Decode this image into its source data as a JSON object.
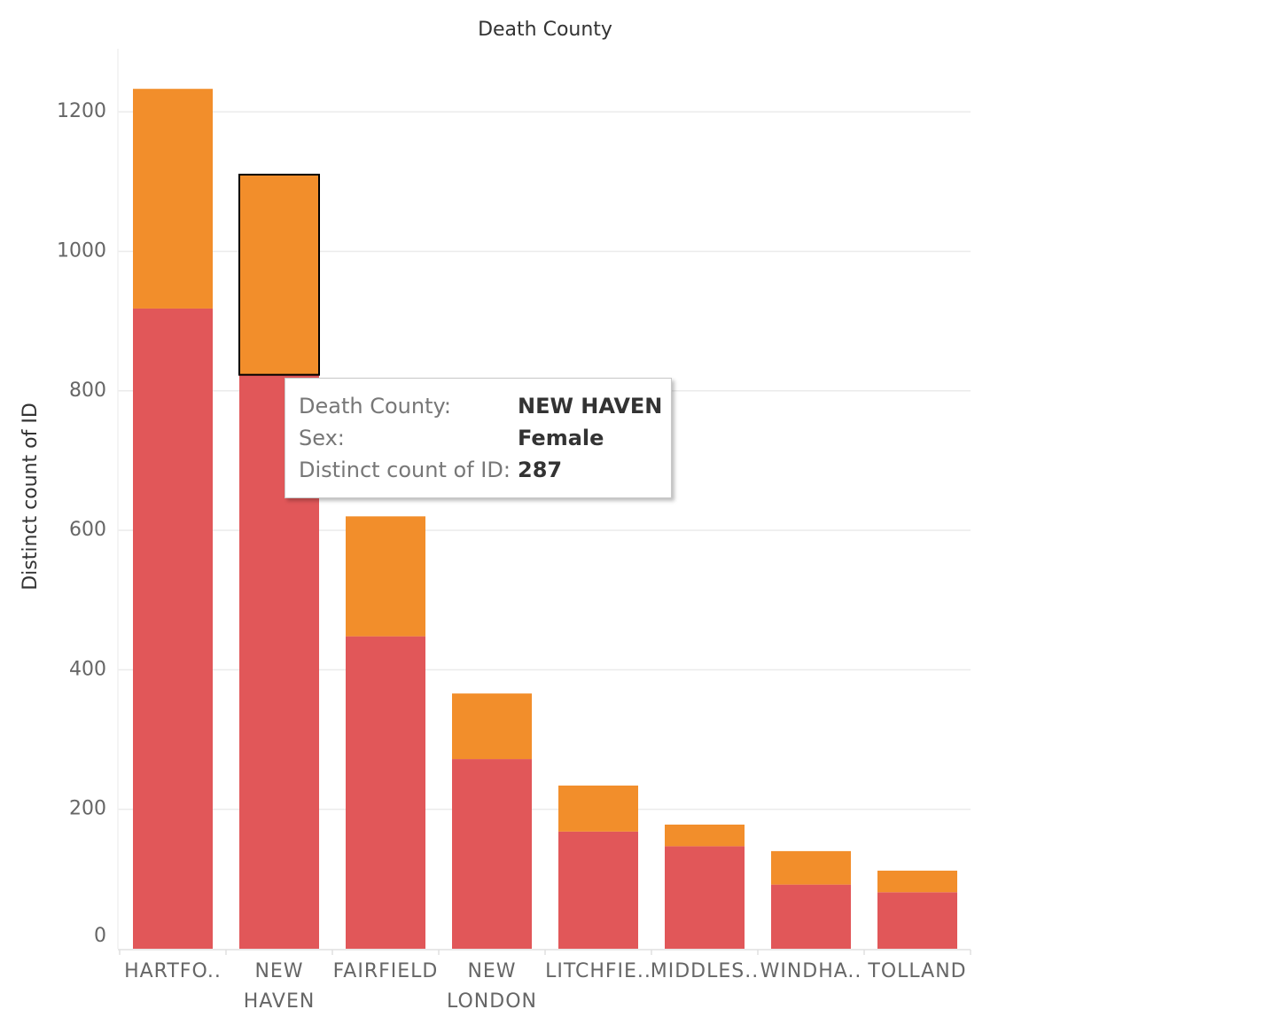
{
  "chart_data": {
    "type": "stacked-bar",
    "title": "Death County",
    "y_label": "Distinct count of ID",
    "categories": [
      "HARTFO..",
      "NEW HAVEN",
      "FAIRFIELD",
      "NEW LONDON",
      "LITCHFIE..",
      "MIDDLES..",
      "WINDHA..",
      "TOLLAND"
    ],
    "series": [
      {
        "color": "#e15759",
        "values": [
          918,
          823,
          448,
          272,
          168,
          147,
          92,
          81
        ]
      },
      {
        "color": "#f28e2b",
        "values": [
          315,
          287,
          172,
          94,
          66,
          31,
          48,
          31
        ]
      }
    ],
    "ylim": [
      0,
      1300
    ],
    "yticks": [
      0,
      200,
      400,
      600,
      800,
      1000,
      1200
    ],
    "grid": true,
    "highlight": {
      "series": 1,
      "index": 1
    },
    "tooltip": [
      [
        "Death County:",
        "NEW HAVEN"
      ],
      [
        "Sex:",
        "Female"
      ],
      [
        "Distinct count of ID:",
        287
      ]
    ]
  }
}
